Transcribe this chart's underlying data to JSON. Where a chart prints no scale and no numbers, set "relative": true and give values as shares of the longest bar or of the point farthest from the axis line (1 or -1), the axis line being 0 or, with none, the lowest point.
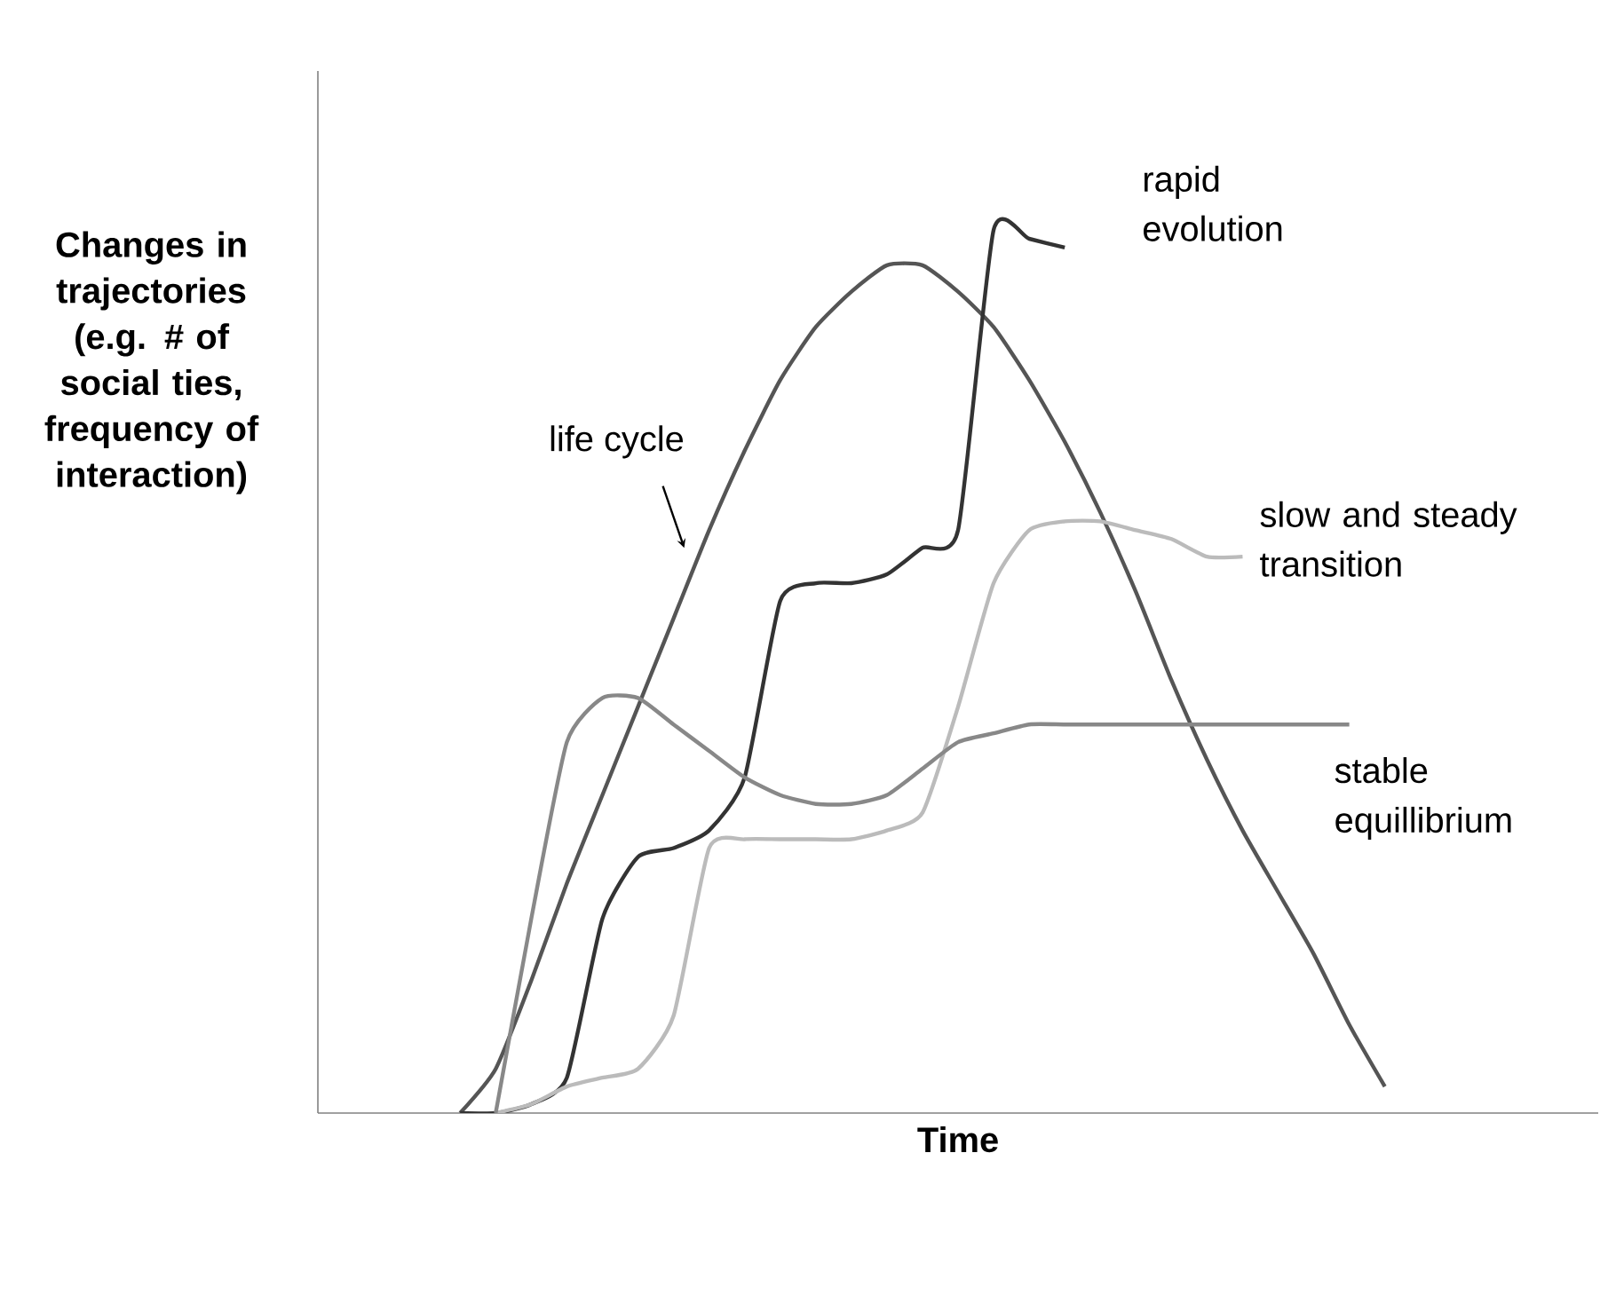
{
  "chart_data": {
    "type": "line",
    "relative": true,
    "xlabel": "Time",
    "ylabel": "Changes in trajectories (e.g. # of social ties, frequency of interaction)",
    "categories": [
      null,
      null,
      null,
      null,
      null,
      null,
      null,
      null,
      null,
      null,
      null,
      null,
      null,
      null,
      null,
      null,
      null,
      null,
      null,
      null,
      null,
      null,
      null,
      null,
      null,
      null,
      null,
      null,
      null,
      null,
      null,
      null,
      null,
      null,
      null,
      null,
      null
    ],
    "series": [
      {
        "name": "life cycle",
        "color": "#555555",
        "values": [
          null,
          null,
          null,
          null,
          0,
          0.05,
          0.15,
          0.26,
          0.36,
          0.46,
          0.56,
          0.66,
          0.75,
          0.83,
          0.89,
          0.93,
          0.96,
          0.96,
          0.93,
          0.89,
          0.83,
          0.76,
          0.68,
          0.59,
          0.49,
          0.4,
          0.32,
          0.25,
          0.18,
          0.1,
          0.03,
          null,
          null,
          null,
          null,
          null,
          null
        ]
      },
      {
        "name": "rapid evolution",
        "color": "#333333",
        "values": [
          null,
          null,
          null,
          null,
          0,
          0.0,
          0.01,
          0.04,
          0.22,
          0.29,
          0.3,
          0.32,
          0.38,
          0.58,
          0.6,
          0.6,
          0.61,
          0.64,
          0.66,
          1.0,
          0.99,
          0.98,
          null,
          null,
          null,
          null,
          null,
          null,
          null,
          null,
          null,
          null,
          null,
          null,
          null,
          null,
          null
        ]
      },
      {
        "name": "slow and steady transition",
        "color": "#bbbbbb",
        "values": [
          null,
          null,
          null,
          null,
          null,
          0,
          0.01,
          0.03,
          0.04,
          0.05,
          0.11,
          0.3,
          0.31,
          0.31,
          0.31,
          0.31,
          0.32,
          0.34,
          0.46,
          0.6,
          0.66,
          0.67,
          0.67,
          0.66,
          0.65,
          0.63,
          0.63,
          null,
          null,
          null,
          null,
          null,
          null,
          null,
          null,
          null,
          null
        ]
      },
      {
        "name": "stable equillibrium",
        "color": "#888888",
        "values": [
          null,
          null,
          null,
          null,
          null,
          0,
          0.22,
          0.42,
          0.47,
          0.47,
          0.44,
          0.41,
          0.38,
          0.36,
          0.35,
          0.35,
          0.36,
          0.39,
          0.42,
          0.43,
          0.44,
          0.44,
          0.44,
          0.44,
          0.44,
          0.44,
          0.44,
          0.44,
          0.44,
          0.44,
          null,
          null,
          null,
          null,
          null,
          null,
          null
        ]
      }
    ]
  }
}
